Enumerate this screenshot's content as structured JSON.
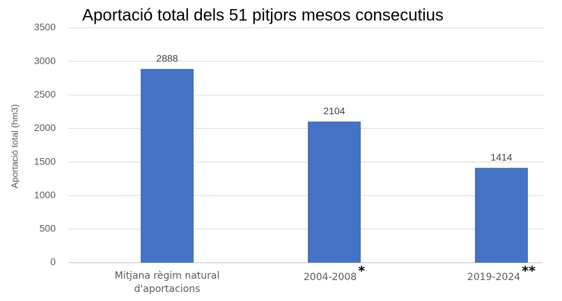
{
  "chart_data": {
    "type": "bar",
    "title": "Aportació total dels 51 pitjors mesos consecutius",
    "y_label": "Aportació total (hm3)",
    "categories": [
      "Mitjana règim natural d'aportacions",
      "2004-2008",
      "2019-2024"
    ],
    "values": [
      2888,
      2104,
      1414
    ],
    "color": "#4472c4",
    "ylim": [
      0,
      3500
    ],
    "yticks": [
      0,
      500,
      1000,
      1500,
      2000,
      2500,
      3000,
      3500
    ],
    "grid": true,
    "annotations": [
      {
        "text": "*",
        "at": "2004-2008"
      },
      {
        "text": "**",
        "at": "2019-2024"
      }
    ]
  }
}
